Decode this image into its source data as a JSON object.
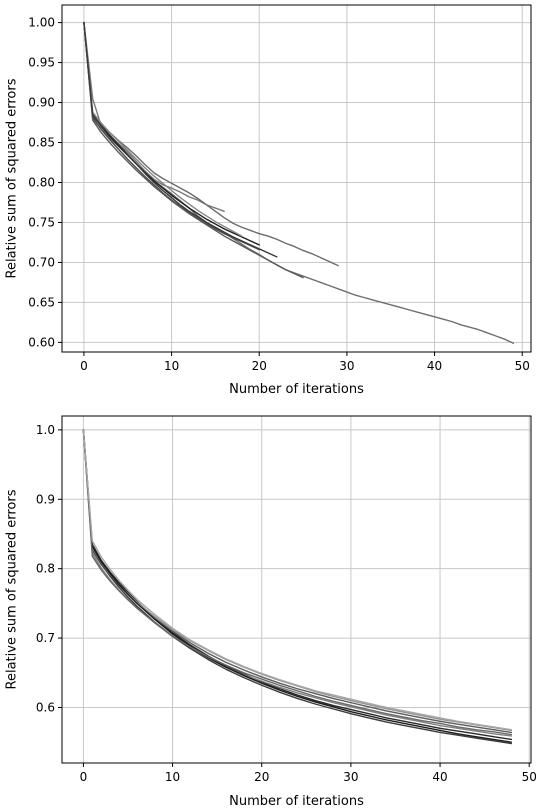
{
  "chart_data": [
    {
      "type": "line",
      "title": "",
      "xlabel": "Number of iterations",
      "ylabel": "Relative sum of squared errors",
      "xlim": [
        -2.5,
        51
      ],
      "ylim": [
        0.588,
        1.022
      ],
      "xticks": [
        0,
        10,
        20,
        30,
        40,
        50
      ],
      "yticks": [
        0.6,
        0.65,
        0.7,
        0.75,
        0.8,
        0.85,
        0.9,
        0.95,
        1.0
      ],
      "xtick_labels": [
        "0",
        "10",
        "20",
        "30",
        "40",
        "50"
      ],
      "ytick_labels": [
        "0.60",
        "0.65",
        "0.70",
        "0.75",
        "0.80",
        "0.85",
        "0.90",
        "0.95",
        "1.00"
      ],
      "grid": true,
      "series": [
        {
          "color": "#7a7a7a",
          "x": [
            0,
            1,
            2,
            3,
            4,
            5,
            6,
            7,
            8,
            9,
            10,
            11,
            12,
            13,
            14,
            15,
            16
          ],
          "y": [
            1.0,
            0.905,
            0.87,
            0.858,
            0.848,
            0.838,
            0.826,
            0.814,
            0.804,
            0.797,
            0.793,
            0.788,
            0.782,
            0.778,
            0.772,
            0.768,
            0.764
          ]
        },
        {
          "color": "#6c6c6c",
          "x": [
            0,
            1,
            2,
            3,
            4,
            5,
            6,
            7,
            8,
            9,
            10,
            11,
            12,
            13,
            14,
            15,
            16,
            17,
            18,
            19,
            20,
            21,
            22,
            23,
            24,
            25,
            26,
            27,
            28,
            29
          ],
          "y": [
            1.0,
            0.886,
            0.873,
            0.862,
            0.852,
            0.843,
            0.833,
            0.822,
            0.812,
            0.805,
            0.799,
            0.793,
            0.787,
            0.78,
            0.772,
            0.764,
            0.756,
            0.749,
            0.744,
            0.74,
            0.736,
            0.733,
            0.729,
            0.724,
            0.72,
            0.715,
            0.711,
            0.706,
            0.701,
            0.696
          ]
        },
        {
          "color": "#6e6e6e",
          "x": [
            0,
            1,
            2,
            3,
            4,
            5,
            6,
            7,
            8,
            9,
            10,
            11,
            12,
            13,
            14,
            15,
            16,
            17,
            18,
            19,
            20,
            21,
            22,
            23,
            24,
            25,
            26,
            27,
            28,
            29,
            30,
            31,
            32,
            33,
            34,
            35,
            36,
            37,
            38,
            39,
            40,
            41,
            42,
            43,
            44,
            45,
            46,
            47,
            48,
            49
          ],
          "y": [
            1.0,
            0.88,
            0.867,
            0.855,
            0.845,
            0.834,
            0.823,
            0.813,
            0.802,
            0.794,
            0.786,
            0.777,
            0.768,
            0.758,
            0.75,
            0.743,
            0.737,
            0.73,
            0.723,
            0.716,
            0.71,
            0.703,
            0.697,
            0.691,
            0.687,
            0.683,
            0.679,
            0.675,
            0.671,
            0.667,
            0.663,
            0.659,
            0.656,
            0.653,
            0.65,
            0.647,
            0.644,
            0.641,
            0.638,
            0.635,
            0.632,
            0.629,
            0.626,
            0.622,
            0.619,
            0.616,
            0.612,
            0.608,
            0.604,
            0.599
          ]
        },
        {
          "color": "#4a4a4a",
          "x": [
            0,
            1,
            2,
            3,
            4,
            5,
            6,
            7,
            8,
            9,
            10,
            11,
            12,
            13,
            14,
            15,
            16,
            17,
            18,
            19,
            20
          ],
          "y": [
            1.0,
            0.882,
            0.866,
            0.853,
            0.841,
            0.829,
            0.818,
            0.807,
            0.797,
            0.787,
            0.778,
            0.77,
            0.762,
            0.755,
            0.748,
            0.742,
            0.736,
            0.731,
            0.726,
            0.721,
            0.716
          ]
        },
        {
          "color": "#1e1e1e",
          "x": [
            0,
            1,
            2,
            3,
            4,
            5,
            6,
            7,
            8,
            9,
            10,
            11,
            12,
            13,
            14,
            15,
            16,
            17,
            18,
            19,
            20
          ],
          "y": [
            1.0,
            0.885,
            0.87,
            0.857,
            0.845,
            0.834,
            0.823,
            0.812,
            0.802,
            0.793,
            0.784,
            0.776,
            0.768,
            0.761,
            0.754,
            0.748,
            0.742,
            0.737,
            0.732,
            0.727,
            0.722
          ]
        },
        {
          "color": "#5a5a5a",
          "x": [
            0,
            1,
            2,
            3,
            4,
            5,
            6,
            7,
            8,
            9,
            10,
            11,
            12,
            13,
            14,
            15,
            16,
            17,
            18,
            19,
            20,
            21,
            22,
            23,
            24,
            25
          ],
          "y": [
            1.0,
            0.878,
            0.862,
            0.849,
            0.837,
            0.826,
            0.815,
            0.805,
            0.795,
            0.786,
            0.777,
            0.769,
            0.761,
            0.754,
            0.747,
            0.74,
            0.733,
            0.727,
            0.721,
            0.715,
            0.709,
            0.703,
            0.697,
            0.691,
            0.686,
            0.681
          ]
        },
        {
          "color": "#888888",
          "x": [
            0,
            1,
            2,
            3,
            4,
            5,
            6,
            7,
            8,
            9,
            10,
            11,
            12,
            13,
            14,
            15,
            16,
            17,
            18
          ],
          "y": [
            1.0,
            0.888,
            0.874,
            0.862,
            0.851,
            0.84,
            0.829,
            0.818,
            0.808,
            0.799,
            0.79,
            0.781,
            0.773,
            0.765,
            0.758,
            0.751,
            0.745,
            0.739,
            0.733
          ]
        },
        {
          "color": "#3a3a3a",
          "x": [
            0,
            1,
            2,
            3,
            4,
            5,
            6,
            7,
            8,
            9,
            10,
            11,
            12,
            13,
            14,
            15,
            16,
            17,
            18,
            19,
            20,
            21,
            22
          ],
          "y": [
            1.0,
            0.884,
            0.871,
            0.859,
            0.847,
            0.835,
            0.823,
            0.811,
            0.8,
            0.79,
            0.781,
            0.772,
            0.764,
            0.757,
            0.75,
            0.744,
            0.738,
            0.732,
            0.727,
            0.722,
            0.717,
            0.712,
            0.707
          ]
        }
      ]
    },
    {
      "type": "line",
      "title": "",
      "xlabel": "Number of iterations",
      "ylabel": "Relative sum of squared errors",
      "xlim": [
        -2.4,
        50.2
      ],
      "ylim": [
        0.52,
        1.02
      ],
      "xticks": [
        0,
        10,
        20,
        30,
        40,
        50
      ],
      "yticks": [
        0.6,
        0.7,
        0.8,
        0.9,
        1.0
      ],
      "xtick_labels": [
        "0",
        "10",
        "20",
        "30",
        "40",
        "50"
      ],
      "ytick_labels": [
        "0.6",
        "0.7",
        "0.8",
        "0.9",
        "1.0"
      ],
      "grid": true,
      "series": [
        {
          "color": "#2a2a2a",
          "x": [
            0,
            1,
            2,
            3,
            4,
            5,
            6,
            8,
            10,
            12,
            14,
            16,
            18,
            20,
            22,
            24,
            26,
            28,
            30,
            32,
            34,
            36,
            38,
            40,
            42,
            44,
            46,
            48
          ],
          "y": [
            1.0,
            0.835,
            0.812,
            0.795,
            0.78,
            0.766,
            0.753,
            0.729,
            0.708,
            0.69,
            0.674,
            0.66,
            0.648,
            0.637,
            0.627,
            0.618,
            0.61,
            0.603,
            0.597,
            0.591,
            0.585,
            0.58,
            0.575,
            0.57,
            0.566,
            0.562,
            0.558,
            0.554
          ]
        },
        {
          "color": "#5c5c5c",
          "x": [
            0,
            1,
            2,
            3,
            4,
            5,
            6,
            8,
            10,
            12,
            14,
            16,
            18,
            20,
            22,
            24,
            26,
            28,
            30,
            32,
            34,
            36,
            38,
            40,
            42,
            44,
            46,
            48
          ],
          "y": [
            1.0,
            0.826,
            0.806,
            0.79,
            0.776,
            0.763,
            0.751,
            0.729,
            0.71,
            0.693,
            0.678,
            0.665,
            0.654,
            0.644,
            0.635,
            0.627,
            0.62,
            0.613,
            0.607,
            0.601,
            0.595,
            0.59,
            0.585,
            0.58,
            0.576,
            0.572,
            0.568,
            0.564
          ]
        },
        {
          "color": "#808080",
          "x": [
            0,
            1,
            2,
            3,
            4,
            5,
            6,
            8,
            10,
            12,
            14,
            16,
            18,
            20,
            22,
            24,
            26,
            28,
            30,
            32,
            34,
            36,
            38,
            40,
            42,
            44,
            46,
            48
          ],
          "y": [
            1.0,
            0.822,
            0.801,
            0.784,
            0.769,
            0.756,
            0.744,
            0.722,
            0.702,
            0.685,
            0.671,
            0.658,
            0.647,
            0.638,
            0.629,
            0.621,
            0.614,
            0.607,
            0.601,
            0.595,
            0.589,
            0.584,
            0.579,
            0.574,
            0.57,
            0.566,
            0.562,
            0.559
          ]
        },
        {
          "color": "#3c3c3c",
          "x": [
            0,
            1,
            2,
            3,
            4,
            5,
            6,
            8,
            10,
            12,
            14,
            16,
            18,
            20,
            22,
            24,
            26,
            28,
            30,
            32,
            34,
            36,
            38,
            40,
            42,
            44,
            46,
            48
          ],
          "y": [
            1.0,
            0.829,
            0.807,
            0.789,
            0.773,
            0.759,
            0.746,
            0.723,
            0.703,
            0.685,
            0.669,
            0.655,
            0.643,
            0.632,
            0.622,
            0.613,
            0.605,
            0.598,
            0.591,
            0.585,
            0.579,
            0.574,
            0.569,
            0.564,
            0.56,
            0.556,
            0.552,
            0.548
          ]
        },
        {
          "color": "#949494",
          "x": [
            0,
            1,
            2,
            3,
            4,
            5,
            6,
            8,
            10,
            12,
            14,
            16,
            18,
            20,
            22,
            24,
            26,
            28,
            30,
            32,
            34,
            36,
            38,
            40,
            42,
            44,
            46,
            48
          ],
          "y": [
            1.0,
            0.83,
            0.809,
            0.792,
            0.777,
            0.764,
            0.752,
            0.731,
            0.712,
            0.696,
            0.682,
            0.669,
            0.658,
            0.648,
            0.639,
            0.631,
            0.623,
            0.616,
            0.61,
            0.604,
            0.598,
            0.593,
            0.588,
            0.583,
            0.579,
            0.575,
            0.571,
            0.567
          ]
        },
        {
          "color": "#1c1c1c",
          "x": [
            0,
            1,
            2,
            3,
            4,
            5,
            6,
            8,
            10,
            12,
            14,
            16,
            18,
            20,
            22,
            24,
            26,
            28,
            30,
            32,
            34,
            36,
            38,
            40,
            42,
            44,
            46,
            48
          ],
          "y": [
            1.0,
            0.832,
            0.81,
            0.793,
            0.777,
            0.763,
            0.75,
            0.727,
            0.706,
            0.688,
            0.672,
            0.658,
            0.646,
            0.635,
            0.625,
            0.616,
            0.608,
            0.601,
            0.594,
            0.588,
            0.582,
            0.577,
            0.572,
            0.567,
            0.562,
            0.558,
            0.554,
            0.55
          ]
        },
        {
          "color": "#6a6a6a",
          "x": [
            0,
            1,
            2,
            3,
            4,
            5,
            6,
            8,
            10,
            12,
            14,
            16,
            18,
            20,
            22,
            24,
            26,
            28,
            30,
            32,
            34,
            36,
            38,
            40,
            42,
            44,
            46,
            48
          ],
          "y": [
            1.0,
            0.818,
            0.798,
            0.782,
            0.768,
            0.755,
            0.743,
            0.722,
            0.703,
            0.687,
            0.673,
            0.661,
            0.65,
            0.641,
            0.632,
            0.624,
            0.616,
            0.609,
            0.603,
            0.597,
            0.591,
            0.586,
            0.581,
            0.577,
            0.572,
            0.568,
            0.565,
            0.561
          ]
        },
        {
          "color": "#a6a6a6",
          "x": [
            0,
            1,
            2,
            3,
            4,
            5,
            6,
            8,
            10,
            12,
            14,
            16,
            18,
            20,
            22,
            24,
            26,
            28,
            30,
            32,
            34,
            36,
            38,
            40,
            42,
            44,
            46,
            48
          ],
          "y": [
            1.0,
            0.84,
            0.817,
            0.799,
            0.783,
            0.769,
            0.756,
            0.734,
            0.714,
            0.697,
            0.683,
            0.67,
            0.659,
            0.649,
            0.64,
            0.632,
            0.624,
            0.618,
            0.612,
            0.606,
            0.6,
            0.595,
            0.59,
            0.585,
            0.58,
            0.576,
            0.572,
            0.568
          ]
        }
      ]
    }
  ]
}
